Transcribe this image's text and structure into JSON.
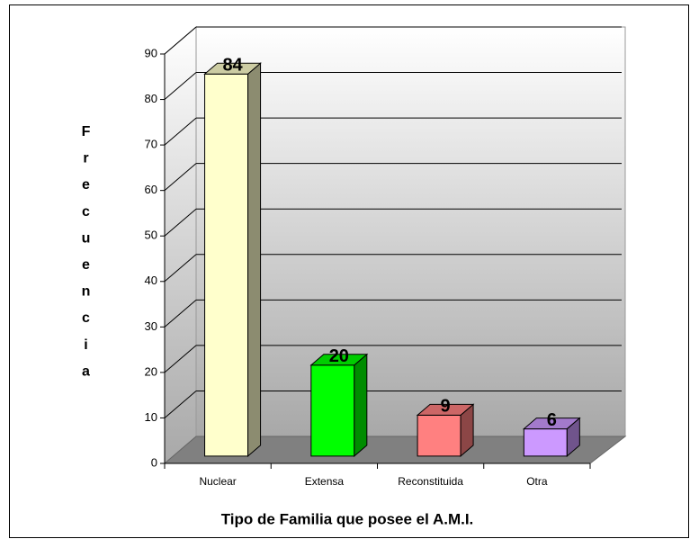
{
  "chart_data": {
    "type": "bar3d",
    "ylabel": "Frecuencia",
    "xlabel": "Tipo de Familia que posee el A.M.I.",
    "categories": [
      "Nuclear",
      "Extensa",
      "Reconstituida",
      "Otra"
    ],
    "values": [
      84,
      20,
      9,
      6
    ],
    "colors": [
      "#ffffcc",
      "#00ff00",
      "#ff8080",
      "#cc99ff"
    ],
    "ylim": [
      0,
      90
    ],
    "yticks": [
      0,
      10,
      20,
      30,
      40,
      50,
      60,
      70,
      80,
      90
    ],
    "grid": true
  }
}
